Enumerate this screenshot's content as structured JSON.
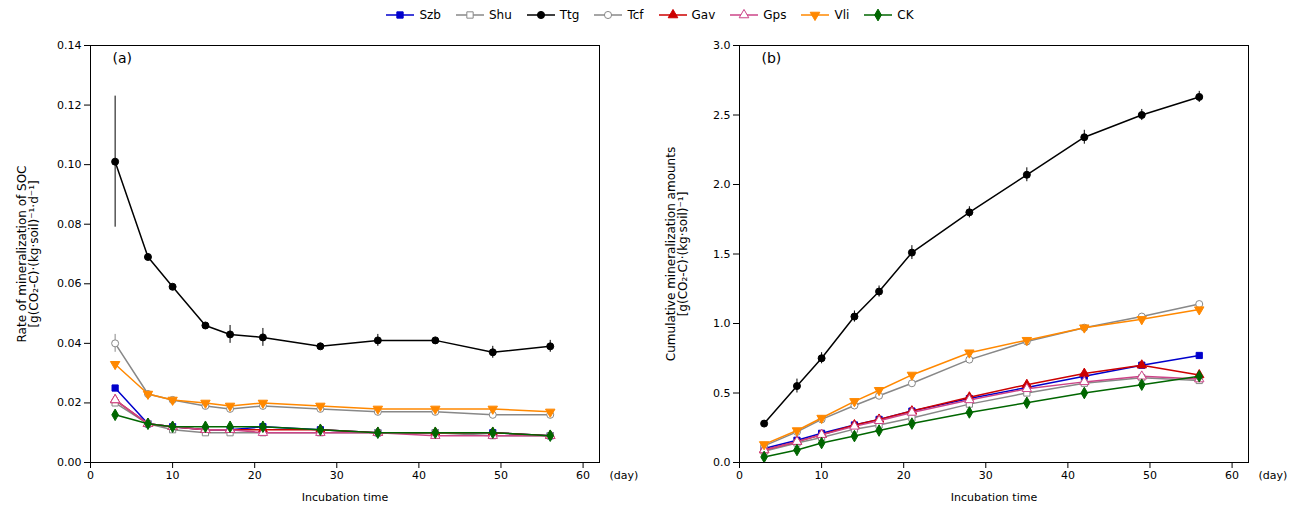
{
  "chart_data": [
    {
      "type": "line",
      "xlabel": "Incubation time",
      "ylabel": "Rate of mineralization of SOC\n[g(CO₂-C)·(kg·soil)⁻¹·d⁻¹]",
      "annotations": [
        "(a)",
        "(day)"
      ],
      "legend": "top",
      "grid": false,
      "x": [
        3,
        7,
        10,
        14,
        17,
        21,
        28,
        35,
        42,
        49,
        56
      ],
      "xlim": [
        0,
        62
      ],
      "xticks": [
        0,
        10,
        20,
        30,
        40,
        50,
        60
      ],
      "ylim": [
        0.0,
        0.14
      ],
      "yticks": [
        {
          "value": 0.0,
          "label": "0.00"
        },
        0.02,
        0.04,
        0.06,
        0.08,
        {
          "value": 0.1,
          "label": "0.10"
        },
        0.12,
        0.14
      ],
      "series": [
        {
          "name": "Szb",
          "color": "#0000CC",
          "marker": "square",
          "values": [
            0.025,
            0.013,
            0.012,
            0.011,
            0.011,
            0.012,
            0.011,
            0.01,
            0.01,
            0.01,
            0.009
          ],
          "yerr": [
            0.0,
            0.0,
            0.0,
            0.001,
            0.001,
            0.0,
            0.0,
            0.0,
            0.0,
            0.0,
            0.0
          ]
        },
        {
          "name": "Shu",
          "color": "#888888",
          "marker": "square-open",
          "values": [
            0.02,
            0.013,
            0.011,
            0.01,
            0.01,
            0.01,
            0.01,
            0.01,
            0.01,
            0.009,
            0.009
          ]
        },
        {
          "name": "Ttg",
          "color": "#000000",
          "marker": "circle",
          "values": [
            0.101,
            0.069,
            0.059,
            0.046,
            0.043,
            0.042,
            0.039,
            0.041,
            0.041,
            0.037,
            0.039
          ],
          "yerr": [
            0.022,
            0.0,
            0.0,
            0.0,
            0.003,
            0.003,
            0.001,
            0.002,
            0.001,
            0.002,
            0.002
          ]
        },
        {
          "name": "Tcf",
          "color": "#888888",
          "marker": "circle-open",
          "values": [
            0.04,
            0.023,
            0.021,
            0.019,
            0.018,
            0.019,
            0.018,
            0.017,
            0.017,
            0.016,
            0.016
          ],
          "yerr": [
            0.003,
            0.001,
            0.0,
            0.001,
            0.0,
            0.001,
            0.0,
            0.0,
            0.001,
            0.001,
            0.001
          ]
        },
        {
          "name": "Gav",
          "color": "#CC0000",
          "marker": "triangle-up",
          "values": [
            0.021,
            0.013,
            0.012,
            0.011,
            0.011,
            0.011,
            0.011,
            0.01,
            0.01,
            0.01,
            0.009
          ]
        },
        {
          "name": "Gps",
          "color": "#CC4488",
          "marker": "triangle-up-open",
          "values": [
            0.021,
            0.013,
            0.012,
            0.011,
            0.011,
            0.01,
            0.01,
            0.01,
            0.009,
            0.009,
            0.009
          ]
        },
        {
          "name": "Vli",
          "color": "#FF8800",
          "marker": "triangle-down",
          "values": [
            0.033,
            0.023,
            0.021,
            0.02,
            0.019,
            0.02,
            0.019,
            0.018,
            0.018,
            0.018,
            0.017
          ]
        },
        {
          "name": "CK",
          "color": "#006600",
          "marker": "diamond",
          "values": [
            0.016,
            0.013,
            0.012,
            0.012,
            0.012,
            0.012,
            0.011,
            0.01,
            0.01,
            0.01,
            0.009
          ]
        }
      ]
    },
    {
      "type": "line",
      "xlabel": "Incubation time",
      "ylabel": "Cumulative mineralization amounts\n[g(CO₂-C)·(kg·soil)⁻¹]",
      "annotations": [
        "(b)",
        "(day)"
      ],
      "grid": false,
      "x": [
        3,
        7,
        10,
        14,
        17,
        21,
        28,
        35,
        42,
        49,
        56
      ],
      "xlim": [
        0,
        62
      ],
      "xticks": [
        0,
        10,
        20,
        30,
        40,
        50,
        60
      ],
      "ylim": [
        0.0,
        3.0
      ],
      "yticks": [
        {
          "value": 0.0,
          "label": "0.0"
        },
        0.5,
        {
          "value": 1.0,
          "label": "1.0"
        },
        1.5,
        {
          "value": 2.0,
          "label": "2.0"
        },
        2.5,
        {
          "value": 3.0,
          "label": "3.0"
        }
      ],
      "series": [
        {
          "name": "Szb",
          "color": "#0000CC",
          "marker": "square",
          "values": [
            0.1,
            0.16,
            0.21,
            0.27,
            0.31,
            0.37,
            0.46,
            0.54,
            0.62,
            0.7,
            0.77
          ]
        },
        {
          "name": "Shu",
          "color": "#888888",
          "marker": "square-open",
          "values": [
            0.08,
            0.14,
            0.18,
            0.24,
            0.27,
            0.32,
            0.42,
            0.5,
            0.57,
            0.61,
            0.59
          ]
        },
        {
          "name": "Ttg",
          "color": "#000000",
          "marker": "circle",
          "values": [
            0.28,
            0.55,
            0.75,
            1.05,
            1.23,
            1.51,
            1.8,
            2.07,
            2.34,
            2.5,
            2.63
          ],
          "yerr": [
            0.02,
            0.05,
            0.04,
            0.04,
            0.04,
            0.05,
            0.04,
            0.05,
            0.05,
            0.04,
            0.04
          ]
        },
        {
          "name": "Tcf",
          "color": "#888888",
          "marker": "circle-open",
          "values": [
            0.12,
            0.22,
            0.31,
            0.41,
            0.48,
            0.57,
            0.74,
            0.87,
            0.97,
            1.05,
            1.14
          ]
        },
        {
          "name": "Gav",
          "color": "#CC0000",
          "marker": "triangle-up",
          "values": [
            0.09,
            0.15,
            0.2,
            0.27,
            0.31,
            0.37,
            0.47,
            0.56,
            0.64,
            0.7,
            0.63
          ]
        },
        {
          "name": "Gps",
          "color": "#CC4488",
          "marker": "triangle-up-open",
          "values": [
            0.09,
            0.15,
            0.2,
            0.26,
            0.3,
            0.36,
            0.45,
            0.53,
            0.58,
            0.62,
            0.6
          ]
        },
        {
          "name": "Vli",
          "color": "#FF8800",
          "marker": "triangle-down",
          "values": [
            0.13,
            0.23,
            0.32,
            0.44,
            0.52,
            0.63,
            0.79,
            0.88,
            0.97,
            1.03,
            1.1
          ]
        },
        {
          "name": "CK",
          "color": "#006600",
          "marker": "diamond",
          "values": [
            0.04,
            0.09,
            0.14,
            0.19,
            0.23,
            0.28,
            0.36,
            0.43,
            0.5,
            0.56,
            0.62
          ]
        }
      ]
    }
  ]
}
